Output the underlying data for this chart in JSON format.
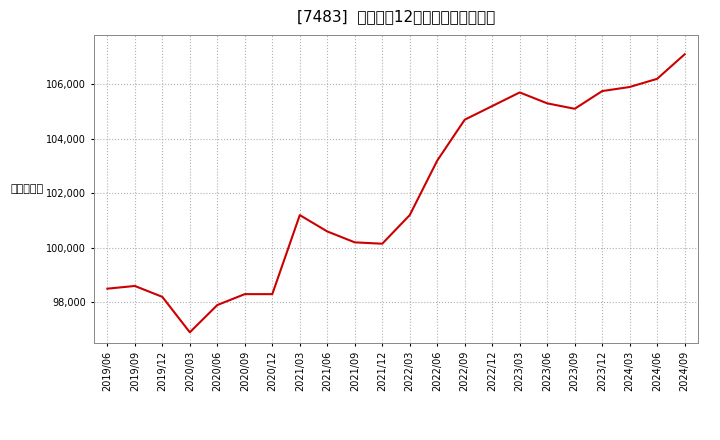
{
  "title": "[7483]  売上高の12か月移動合計の推移",
  "ylabel": "（百万円）",
  "line_color": "#cc0000",
  "bg_color": "#ffffff",
  "plot_bg_color": "#ffffff",
  "grid_color": "#b0b0b0",
  "dates": [
    "2019/06",
    "2019/09",
    "2019/12",
    "2020/03",
    "2020/06",
    "2020/09",
    "2020/12",
    "2021/03",
    "2021/06",
    "2021/09",
    "2021/12",
    "2022/03",
    "2022/06",
    "2022/09",
    "2022/12",
    "2023/03",
    "2023/06",
    "2023/09",
    "2023/12",
    "2024/03",
    "2024/06",
    "2024/09"
  ],
  "values": [
    98500,
    98600,
    98200,
    96900,
    97900,
    98300,
    98300,
    101200,
    100600,
    100200,
    100150,
    101200,
    103200,
    104700,
    105200,
    105700,
    105300,
    105100,
    105750,
    105900,
    106200,
    107100
  ],
  "yticks": [
    98000,
    100000,
    102000,
    104000,
    106000
  ],
  "ylim": [
    96500,
    107800
  ],
  "title_fontsize": 11,
  "tick_fontsize": 7,
  "ylabel_fontsize": 8
}
